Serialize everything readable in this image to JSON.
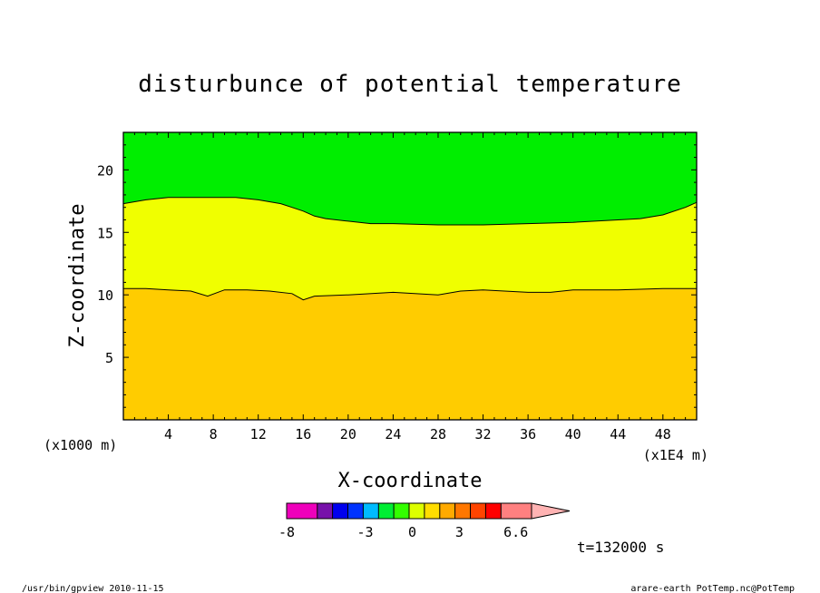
{
  "chart_data": {
    "type": "contour",
    "title": "disturbunce of potential temperature",
    "xlabel": "X-coordinate",
    "ylabel": "Z-coordinate",
    "x_unit": "(x1E4 m)",
    "y_unit": "(x1000 m)",
    "xlim": [
      0,
      51
    ],
    "ylim": [
      0,
      23
    ],
    "x_ticks": [
      "4",
      "8",
      "12",
      "16",
      "20",
      "24",
      "28",
      "32",
      "36",
      "40",
      "44",
      "48"
    ],
    "x_tick_values": [
      4,
      8,
      12,
      16,
      20,
      24,
      28,
      32,
      36,
      40,
      44,
      48
    ],
    "y_ticks": [
      "5",
      "10",
      "15",
      "20"
    ],
    "y_tick_values": [
      5,
      10,
      15,
      20
    ],
    "regions": [
      {
        "name": "band-orange",
        "color": "#ffcc00"
      },
      {
        "name": "band-yellow",
        "color": "#f0ff00"
      },
      {
        "name": "band-green",
        "color": "#00ee00"
      }
    ],
    "contours": [
      {
        "x": [
          0,
          2,
          4,
          6,
          7.5,
          9,
          11,
          13,
          15,
          16,
          17,
          20,
          24,
          28,
          30,
          32,
          36,
          38,
          40,
          44,
          48,
          51
        ],
        "z": [
          10.5,
          10.5,
          10.4,
          10.3,
          9.9,
          10.4,
          10.4,
          10.3,
          10.1,
          9.6,
          9.9,
          10.0,
          10.2,
          10.0,
          10.3,
          10.4,
          10.2,
          10.2,
          10.4,
          10.4,
          10.5,
          10.5
        ]
      },
      {
        "x": [
          0,
          2,
          4,
          6,
          8,
          10,
          12,
          14,
          15,
          16,
          17,
          18,
          20,
          22,
          24,
          28,
          32,
          36,
          40,
          44,
          46,
          48,
          50,
          51
        ],
        "z": [
          17.3,
          17.6,
          17.8,
          17.8,
          17.8,
          17.8,
          17.6,
          17.3,
          17.0,
          16.7,
          16.3,
          16.1,
          15.9,
          15.7,
          15.7,
          15.6,
          15.6,
          15.7,
          15.8,
          16.0,
          16.1,
          16.4,
          17.0,
          17.4
        ]
      }
    ],
    "colorbar": {
      "colors": [
        "#ee00bb",
        "#ee00bb",
        "#7711aa",
        "#0000ee",
        "#0033ff",
        "#00bbff",
        "#00ee33",
        "#33ff00",
        "#ddff00",
        "#ffdd00",
        "#ffaa00",
        "#ff7700",
        "#ff4400",
        "#ff0000",
        "#ff8080",
        "#ff8080"
      ],
      "labels": [
        "-8",
        "-3",
        "0",
        "3",
        "6.6"
      ],
      "label_positions": [
        0,
        5,
        8,
        11,
        14.6
      ],
      "range": [
        -8,
        7.6
      ]
    },
    "time_label": "t=132000 s"
  },
  "footer": {
    "left": "/usr/bin/gpview  2010-11-15",
    "right": "arare-earth_PotTemp.nc@PotTemp"
  }
}
